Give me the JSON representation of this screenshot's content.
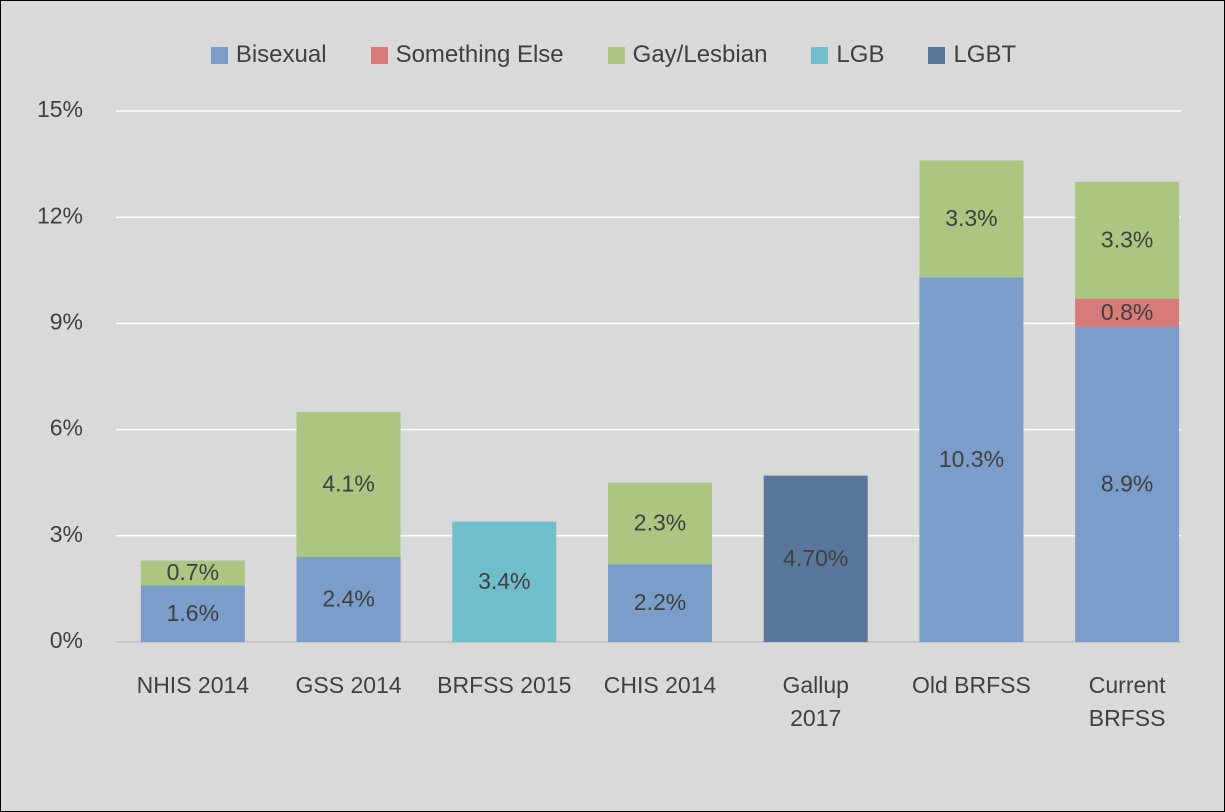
{
  "chart_data": {
    "type": "stacked_bar",
    "categories": [
      "NHIS 2014",
      "GSS 2014",
      "BRFSS 2015",
      "CHIS 2014",
      "Gallup\n2017",
      "Old BRFSS",
      "Current\nBRFSS"
    ],
    "series": [
      {
        "name": "Bisexual",
        "color": "#7b9dc9",
        "values": [
          1.6,
          2.4,
          null,
          2.2,
          null,
          10.3,
          8.9
        ],
        "value_labels": [
          "1.6%",
          "2.4%",
          null,
          "2.2%",
          null,
          "10.3%",
          "8.9%"
        ]
      },
      {
        "name": "Something Else",
        "color": "#d67b79",
        "values": [
          null,
          null,
          null,
          null,
          null,
          null,
          0.8
        ],
        "value_labels": [
          null,
          null,
          null,
          null,
          null,
          null,
          "0.8%"
        ]
      },
      {
        "name": "Gay/Lesbian",
        "color": "#aac681",
        "values": [
          0.7,
          4.1,
          null,
          2.3,
          null,
          3.3,
          3.3
        ],
        "value_labels": [
          "0.7%",
          "4.1%",
          null,
          "2.3%",
          null,
          "3.3%",
          "3.3%"
        ]
      },
      {
        "name": "LGB",
        "color": "#70bdcc",
        "values": [
          null,
          null,
          3.4,
          null,
          null,
          null,
          null
        ],
        "value_labels": [
          null,
          null,
          "3.4%",
          null,
          null,
          null,
          null
        ]
      },
      {
        "name": "LGBT",
        "color": "#59779b",
        "values": [
          null,
          null,
          null,
          null,
          4.7,
          null,
          null
        ],
        "value_labels": [
          null,
          null,
          null,
          null,
          "4.70%",
          null,
          null
        ]
      }
    ],
    "ylim": [
      0,
      15
    ],
    "yticks": [
      {
        "value": 0,
        "label": "0%"
      },
      {
        "value": 3,
        "label": "3%"
      },
      {
        "value": 6,
        "label": "6%"
      },
      {
        "value": 9,
        "label": "9%"
      },
      {
        "value": 12,
        "label": "12%"
      },
      {
        "value": 15,
        "label": "15%"
      }
    ],
    "grid": true,
    "legend": "top"
  }
}
